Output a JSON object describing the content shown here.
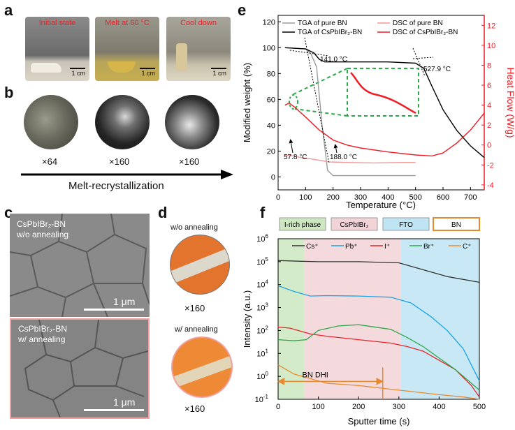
{
  "panel_labels": {
    "a": "a",
    "b": "b",
    "c": "c",
    "d": "d",
    "e": "e",
    "f": "f"
  },
  "panel_a": {
    "vials": [
      {
        "caption": "Initial state",
        "scale": "1 cm"
      },
      {
        "caption": "Melt at 60 °C",
        "scale": "1 cm"
      },
      {
        "caption": "Cool down",
        "scale": "1 cm"
      }
    ]
  },
  "panel_b": {
    "magnifications": [
      "×64",
      "×160",
      "×160"
    ],
    "arrow_label": "Melt-recrystallization"
  },
  "panel_c": {
    "top": {
      "line1": "CsPbIBr₂-BN",
      "line2": "w/o annealing",
      "scale": "1 μm"
    },
    "bottom": {
      "line1": "CsPbIBr₂-BN",
      "line2": "w/ annealing",
      "scale": "1 μm"
    }
  },
  "panel_d": {
    "top_title": "w/o annealing",
    "top_mag": "×160",
    "bottom_title": "w/ annealing",
    "bottom_mag": "×160"
  },
  "colors": {
    "red": "#ee1c25",
    "gray": "#9b9b9b",
    "black": "#000000",
    "ff_red": "#e8242a",
    "orange": "#e88a2e",
    "green_dash": "#2aa84a"
  },
  "chart_data": [
    {
      "id": "e",
      "type": "line",
      "title": "",
      "xlabel": "Temperature (°C)",
      "ylabel": "Modified weight (%)",
      "y2label": "Heat Flow (W/g)",
      "xlim": [
        0,
        750
      ],
      "ylim": [
        -10,
        125
      ],
      "y2lim": [
        -4.5,
        13
      ],
      "xticks": [
        0,
        100,
        200,
        300,
        400,
        500,
        600,
        700
      ],
      "yticks": [
        0,
        20,
        40,
        60,
        80,
        100,
        120
      ],
      "y2ticks": [
        -4,
        -2,
        0,
        2,
        4,
        6,
        8,
        10,
        12
      ],
      "legend": [
        "TGA of pure BN",
        "TGA of CsPbIBr₂-BN",
        "DSC of pure BN",
        "DSC of CsPbIBr₂-BN"
      ],
      "annotations": [
        "141.0 °C",
        "527.9 °C",
        "57.8 °C",
        "188.0 °C"
      ],
      "series": [
        {
          "name": "TGA of pure BN",
          "axis": "left",
          "x": [
            25,
            100,
            120,
            140,
            160,
            180,
            200,
            300,
            400,
            500
          ],
          "y": [
            100,
            99,
            95,
            85,
            40,
            5,
            1,
            1,
            1,
            1
          ]
        },
        {
          "name": "TGA of CsPbIBr₂-BN",
          "axis": "left",
          "x": [
            25,
            100,
            130,
            150,
            170,
            200,
            300,
            400,
            500,
            530,
            560,
            600,
            650,
            700,
            750
          ],
          "y": [
            100,
            99,
            96,
            91,
            89,
            89,
            89,
            89,
            88,
            84,
            70,
            52,
            36,
            24,
            15
          ]
        },
        {
          "name": "DSC of pure BN",
          "axis": "right",
          "x": [
            25,
            40,
            58,
            80,
            120,
            188,
            250,
            350,
            450,
            500
          ],
          "y": [
            -1.0,
            -1.05,
            -1.1,
            -1.25,
            -1.4,
            -1.7,
            -1.75,
            -1.8,
            -1.75,
            -1.75
          ]
        },
        {
          "name": "DSC of CsPbIBr₂-BN",
          "axis": "right",
          "x": [
            25,
            40,
            60,
            100,
            150,
            200,
            250,
            300,
            400,
            500,
            560,
            600,
            650,
            700,
            750
          ],
          "y": [
            4.0,
            4.2,
            3.8,
            2.8,
            1.5,
            0.5,
            0.0,
            -0.3,
            -0.7,
            -1.0,
            -1.1,
            -0.8,
            0.2,
            1.5,
            3.2
          ]
        }
      ]
    },
    {
      "id": "f",
      "type": "line",
      "title": "",
      "xlabel": "Sputter time (s)",
      "ylabel": "Intensity (a.u.)",
      "xlim": [
        0,
        500
      ],
      "ylim_log10": [
        -1,
        6
      ],
      "xticks": [
        0,
        100,
        200,
        300,
        400,
        500
      ],
      "yticks_log": [
        -1,
        0,
        1,
        2,
        3,
        4,
        5,
        6
      ],
      "regions": [
        {
          "name": "I-rich phase",
          "x": [
            0,
            65
          ]
        },
        {
          "name": "CsPbIBr₂",
          "x": [
            65,
            305
          ]
        },
        {
          "name": "FTO",
          "x": [
            305,
            500
          ]
        },
        {
          "name": "BN",
          "x": []
        }
      ],
      "annotation_label": "BN DHI",
      "annotation_x": [
        0,
        260
      ],
      "annotation_y_log10": -0.22,
      "legend": [
        "Cs⁺",
        "Pb⁺",
        "I⁺",
        "Br⁺",
        "C⁺"
      ],
      "series": [
        {
          "name": "Cs⁺",
          "x": [
            0,
            50,
            100,
            200,
            300,
            360,
            420,
            500
          ],
          "y_log10": [
            5.05,
            5.02,
            5.0,
            5.0,
            4.95,
            4.65,
            4.35,
            4.1
          ]
        },
        {
          "name": "Pb⁺",
          "x": [
            0,
            40,
            80,
            120,
            200,
            280,
            330,
            380,
            420,
            460,
            500
          ],
          "y_log10": [
            3.95,
            3.7,
            3.5,
            3.52,
            3.5,
            3.45,
            3.2,
            2.6,
            2.0,
            1.2,
            -0.2
          ]
        },
        {
          "name": "I⁺",
          "x": [
            0,
            30,
            60,
            80,
            120,
            200,
            280,
            320,
            360,
            400,
            440,
            480,
            500
          ],
          "y_log10": [
            2.15,
            2.1,
            1.95,
            1.85,
            1.75,
            1.6,
            1.45,
            1.3,
            1.1,
            0.7,
            0.3,
            -0.4,
            -0.9
          ]
        },
        {
          "name": "Br⁺",
          "x": [
            0,
            40,
            70,
            100,
            150,
            200,
            280,
            320,
            360,
            400,
            440,
            480,
            500
          ],
          "y_log10": [
            1.6,
            1.55,
            1.6,
            2.0,
            2.2,
            2.25,
            2.05,
            1.7,
            1.3,
            0.8,
            0.3,
            -0.3,
            -0.6
          ]
        },
        {
          "name": "C⁺",
          "x": [
            0,
            20,
            40,
            60,
            80,
            120,
            200,
            300,
            400,
            460,
            500
          ],
          "y_log10": [
            0.5,
            0.3,
            0.1,
            0.0,
            -0.1,
            -0.3,
            -0.4,
            -0.6,
            -0.8,
            -0.9,
            -1.0
          ]
        }
      ]
    }
  ]
}
